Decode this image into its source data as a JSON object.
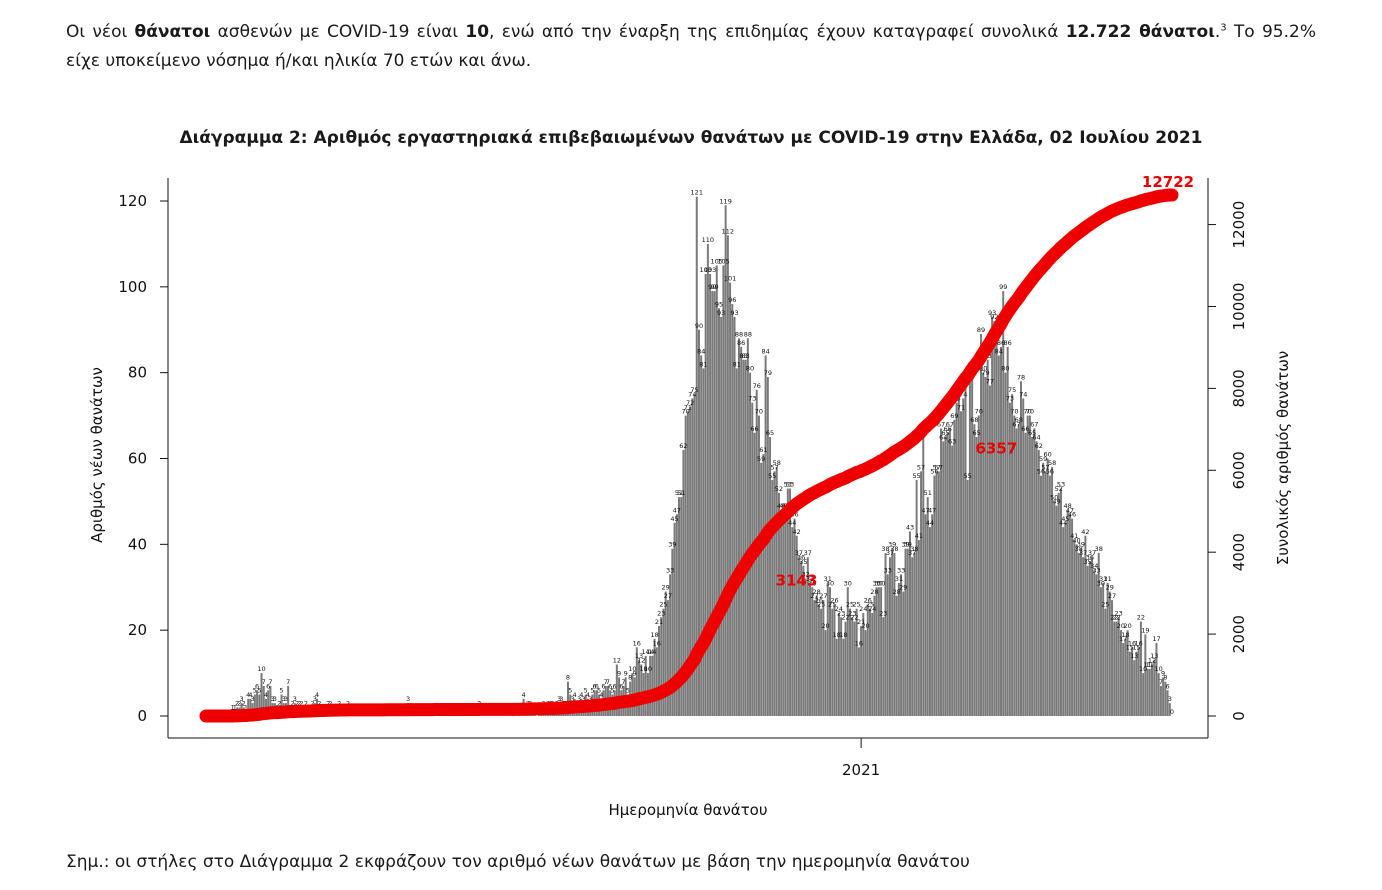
{
  "paragraph": {
    "t1": "Οι νέοι ",
    "b1": "θάνατοι",
    "t2": " ασθενών με COVID-19 είναι ",
    "b2": "10",
    "t3": ", ενώ από την έναρξη της επιδημίας έχουν καταγραφεί συνολικά ",
    "b3": "12.722 θάνατοι",
    "t4": ".",
    "sup": "3",
    "t5": "  Το 95.2% είχε υποκείμενο νόσημα ή/και ηλικία 70 ετών και άνω."
  },
  "note": "Σημ.: οι στήλες στο Διάγραμμα 2 εκφράζουν τον αριθμό νέων θανάτων με βάση την ημερομηνία θανάτου",
  "chart_data": {
    "type": "bar",
    "title": "Διάγραμμα 2: Αριθμός εργαστηριακά επιβεβαιωμένων θανάτων με COVID-19 στην Ελλάδα, 02 Ιουλίου 2021",
    "xlabel": "Ημερομηνία θανάτου",
    "ylabel": "Αριθμός νέων θανάτων",
    "y2label": "Συνολικός αριθμός θανάτων",
    "ylim": [
      0,
      120
    ],
    "yticks": [
      0,
      20,
      40,
      60,
      80,
      100,
      120
    ],
    "y2lim": [
      0,
      12722
    ],
    "y2ticks": [
      0,
      2000,
      4000,
      6000,
      8000,
      10000,
      12000
    ],
    "xtick_label": "2021",
    "xtick_date": "2021-01-01",
    "x_range": [
      "2020-03-12",
      "2021-07-01"
    ],
    "colors": {
      "bars": "#7a7a7a",
      "cumulative_line": "#ee0000"
    },
    "cumulative_labels": [
      {
        "date": "2020-12-15",
        "value": "3143"
      },
      {
        "date": "2021-03-15",
        "value": "6357"
      },
      {
        "date": "2021-07-01",
        "value": "12722"
      }
    ],
    "series": [
      {
        "name": "Αριθμός νέων θανάτων",
        "type": "bar",
        "note": "daily values, one per day from 2020-03-12 to 2021-07-01",
        "values": [
          0,
          0,
          0,
          0,
          0,
          0,
          0,
          0,
          0,
          0,
          0,
          0,
          1,
          1,
          2,
          2,
          3,
          2,
          1,
          4,
          4,
          3,
          5,
          6,
          5,
          10,
          7,
          4,
          6,
          7,
          3,
          3,
          1,
          2,
          5,
          3,
          3,
          7,
          1,
          2,
          3,
          2,
          2,
          2,
          1,
          2,
          1,
          1,
          2,
          3,
          4,
          2,
          1,
          1,
          1,
          2,
          2,
          1,
          0,
          1,
          2,
          0,
          0,
          1,
          2,
          0,
          1,
          0,
          0,
          0,
          0,
          0,
          0,
          0,
          0,
          0,
          0,
          0,
          0,
          1,
          0,
          1,
          0,
          0,
          0,
          0,
          0,
          0,
          0,
          0,
          0,
          3,
          0,
          1,
          0,
          0,
          0,
          0,
          1,
          0,
          0,
          0,
          0,
          1,
          0,
          0,
          0,
          0,
          0,
          0,
          0,
          0,
          1,
          0,
          0,
          0,
          0,
          0,
          0,
          1,
          0,
          0,
          0,
          2,
          0,
          0,
          0,
          0,
          0,
          0,
          0,
          0,
          0,
          0,
          0,
          0,
          0,
          0,
          1,
          0,
          0,
          0,
          0,
          4,
          1,
          2,
          2,
          1,
          1,
          0,
          1,
          1,
          2,
          1,
          2,
          2,
          2,
          1,
          2,
          3,
          3,
          2,
          2,
          8,
          5,
          3,
          4,
          2,
          3,
          4,
          3,
          5,
          4,
          3,
          5,
          6,
          6,
          5,
          4,
          6,
          7,
          7,
          6,
          5,
          6,
          12,
          9,
          6,
          7,
          9,
          5,
          8,
          10,
          9,
          16,
          13,
          12,
          10,
          14,
          10,
          14,
          14,
          18,
          16,
          21,
          23,
          25,
          29,
          27,
          33,
          39,
          45,
          47,
          51,
          51,
          62,
          70,
          71,
          72,
          74,
          75,
          121,
          90,
          84,
          81,
          103,
          110,
          103,
          99,
          99,
          105,
          95,
          93,
          105,
          119,
          112,
          101,
          96,
          93,
          81,
          88,
          86,
          83,
          83,
          88,
          80,
          73,
          66,
          76,
          70,
          59,
          61,
          84,
          79,
          65,
          55,
          57,
          58,
          52,
          48,
          48,
          48,
          53,
          53,
          44,
          46,
          42,
          37,
          36,
          35,
          32,
          37,
          31,
          30,
          27,
          28,
          26,
          25,
          27,
          20,
          31,
          30,
          25,
          26,
          18,
          24,
          23,
          18,
          22,
          30,
          25,
          23,
          22,
          25,
          16,
          21,
          24,
          20,
          26,
          25,
          24,
          28,
          30,
          30,
          30,
          23,
          38,
          33,
          37,
          39,
          38,
          28,
          31,
          33,
          29,
          39,
          39,
          43,
          37,
          38,
          55,
          41,
          57,
          65,
          47,
          51,
          44,
          47,
          56,
          57,
          57,
          67,
          64,
          65,
          66,
          67,
          63,
          69,
          73,
          75,
          71,
          74,
          78,
          55,
          78,
          81,
          68,
          65,
          70,
          89,
          80,
          79,
          83,
          77,
          93,
          92,
          88,
          84,
          86,
          99,
          80,
          86,
          73,
          75,
          70,
          67,
          68,
          78,
          74,
          66,
          70,
          70,
          65,
          67,
          64,
          62,
          56,
          59,
          57,
          60,
          56,
          58,
          50,
          49,
          52,
          53,
          44,
          45,
          48,
          47,
          46,
          41,
          40,
          38,
          39,
          37,
          42,
          35,
          36,
          37,
          34,
          33,
          38,
          30,
          31,
          25,
          31,
          29,
          27,
          22,
          22,
          23,
          20,
          17,
          18,
          20,
          15,
          16,
          13,
          15,
          16,
          22,
          10,
          19,
          11,
          11,
          12,
          13,
          17,
          10,
          7,
          9,
          8,
          6,
          3,
          0
        ]
      }
    ]
  }
}
